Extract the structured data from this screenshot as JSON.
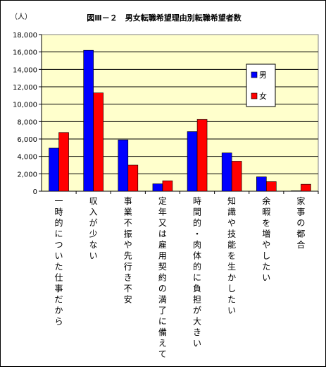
{
  "chart_data": {
    "type": "bar",
    "title": "図Ⅲ－２　男女転職希望理由別転職希望者数",
    "unit_label": "（人）",
    "ylim": [
      0,
      18000
    ],
    "yticks": [
      0,
      2000,
      4000,
      6000,
      8000,
      10000,
      12000,
      14000,
      16000,
      18000
    ],
    "ytick_labels": [
      "0",
      "2,000",
      "4,000",
      "6,000",
      "8,000",
      "10,000",
      "12,000",
      "14,000",
      "16,000",
      "18,000"
    ],
    "grid": true,
    "legend_position": "right",
    "categories": [
      "一時的についた仕事だから",
      "収入が少ない",
      "事業不振や先行き不安",
      "定年又は雇用契約の満了に備えて",
      "時間的・肉体的に負担が大きい",
      "知識や技能を生かしたい",
      "余暇を増やしたい",
      "家事の都合"
    ],
    "series": [
      {
        "name": "男",
        "color": "#0000ff",
        "values": [
          4950,
          16200,
          5900,
          850,
          6850,
          4400,
          1650,
          50
        ]
      },
      {
        "name": "女",
        "color": "#ff0000",
        "values": [
          6750,
          11300,
          3000,
          1200,
          8250,
          3450,
          1100,
          800
        ]
      }
    ],
    "plot_background": "#ffffcc"
  }
}
